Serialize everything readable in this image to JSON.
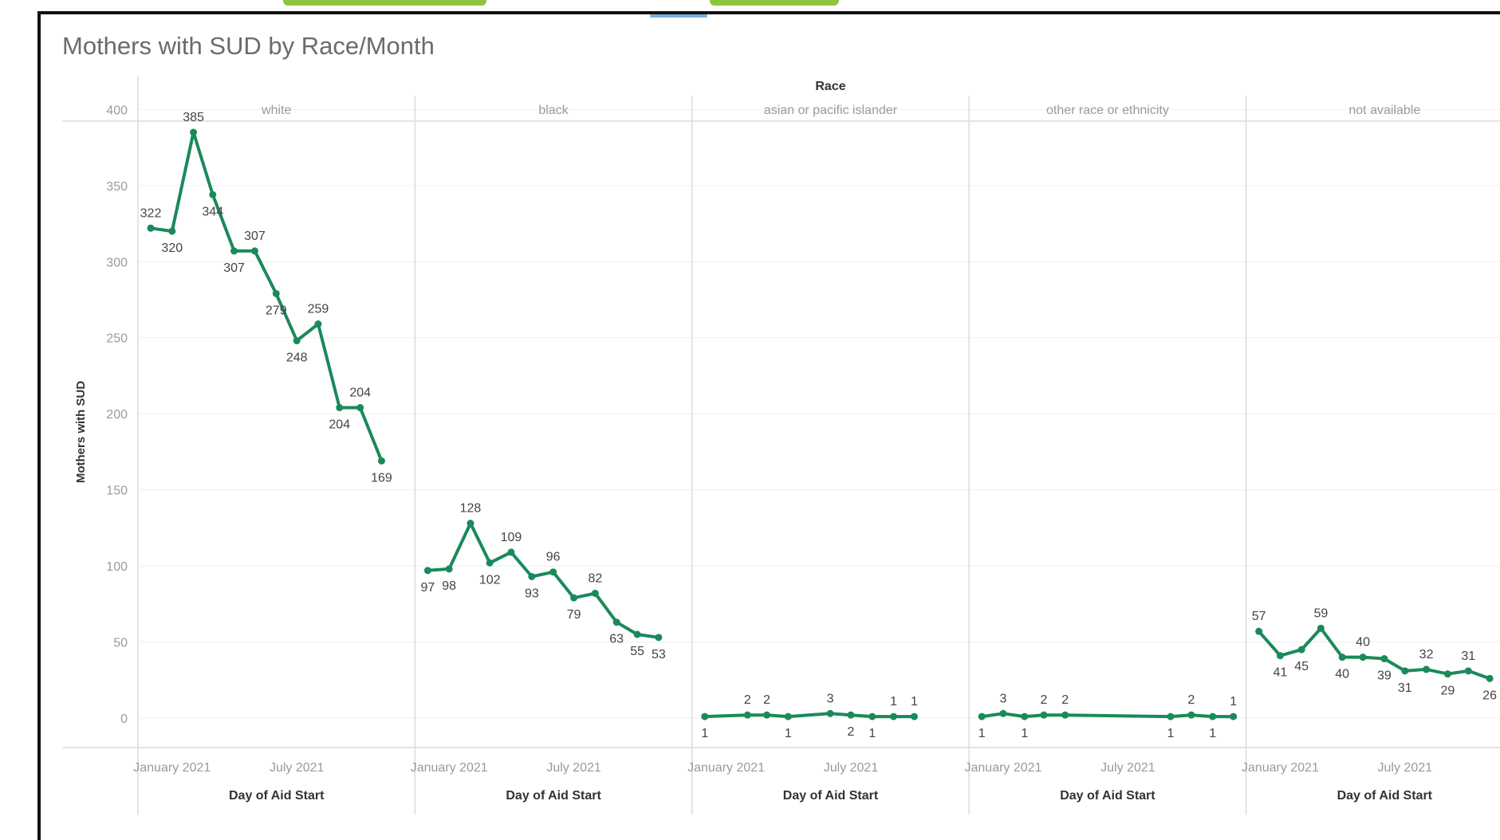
{
  "chart_title": "Mothers with SUD by Race/Month",
  "colors": {
    "line": "#1a8a5a",
    "grid": "#dcdcdc",
    "axis_text": "#9a9a9a",
    "label_text": "#444444",
    "accent_green": "#8cc63f"
  },
  "chart_data": {
    "type": "line",
    "title": "Mothers with SUD by Race/Month",
    "facet_label": "Race",
    "ylabel": "Mothers with SUD",
    "xlabel": "Day of Aid Start",
    "ylim": [
      0,
      400
    ],
    "yticks": [
      0,
      50,
      100,
      150,
      200,
      250,
      300,
      350,
      400
    ],
    "xtick_labels": [
      "January 2021",
      "July 2021"
    ],
    "grid": true,
    "panels": [
      {
        "name": "white",
        "x": [
          "2020-12",
          "2021-01",
          "2021-02",
          "2021-03",
          "2021-04",
          "2021-05",
          "2021-06",
          "2021-07",
          "2021-08",
          "2021-09",
          "2021-10",
          "2021-11"
        ],
        "y": [
          322,
          320,
          385,
          344,
          307,
          307,
          279,
          248,
          259,
          204,
          204,
          169
        ]
      },
      {
        "name": "black",
        "x": [
          "2020-12",
          "2021-01",
          "2021-02",
          "2021-03",
          "2021-04",
          "2021-05",
          "2021-06",
          "2021-07",
          "2021-08",
          "2021-09",
          "2021-10",
          "2021-11"
        ],
        "y": [
          97,
          98,
          128,
          102,
          109,
          93,
          96,
          79,
          82,
          63,
          55,
          53
        ]
      },
      {
        "name": "asian or pacific islander",
        "x": [
          "2020-12",
          "2021-02",
          "2021-03",
          "2021-04",
          "2021-06",
          "2021-07",
          "2021-08",
          "2021-09",
          "2021-10"
        ],
        "y": [
          1,
          2,
          2,
          1,
          3,
          2,
          1,
          1,
          1
        ]
      },
      {
        "name": "other race or ethnicity",
        "x": [
          "2020-12",
          "2021-01",
          "2021-02",
          "2021-03",
          "2021-04",
          "2021-09",
          "2021-10",
          "2021-11",
          "2021-12"
        ],
        "y": [
          1,
          3,
          1,
          2,
          2,
          1,
          2,
          1,
          1
        ]
      },
      {
        "name": "not available",
        "x": [
          "2020-12",
          "2021-01",
          "2021-02",
          "2021-03",
          "2021-04",
          "2021-05",
          "2021-06",
          "2021-07",
          "2021-08",
          "2021-09",
          "2021-10",
          "2021-11"
        ],
        "y": [
          57,
          41,
          45,
          59,
          40,
          40,
          39,
          31,
          32,
          29,
          31,
          26
        ]
      }
    ]
  }
}
